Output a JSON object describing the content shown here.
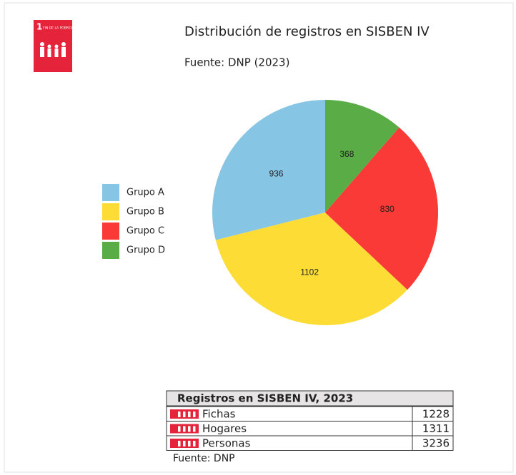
{
  "logo": {
    "number": "1",
    "label": "FIN DE LA POBREZA"
  },
  "chart_data": {
    "type": "pie",
    "title": "Distribución de registros en SISBEN IV",
    "subtitle": "Fuente: DNP (2023)",
    "categories": [
      "Grupo A",
      "Grupo B",
      "Grupo C",
      "Grupo D"
    ],
    "values": [
      936,
      1102,
      830,
      368
    ],
    "colors": [
      "#87c5e4",
      "#fddc35",
      "#f93a37",
      "#5aac47"
    ],
    "direction": "counterclockwise",
    "start": "top",
    "legend": "left"
  },
  "table": {
    "title": "Registros en SISBEN IV, 2023",
    "rows": [
      [
        "Fichas",
        "1228"
      ],
      [
        "Hogares",
        "1311"
      ],
      [
        "Personas",
        "3236"
      ]
    ],
    "source": "Fuente: DNP"
  }
}
